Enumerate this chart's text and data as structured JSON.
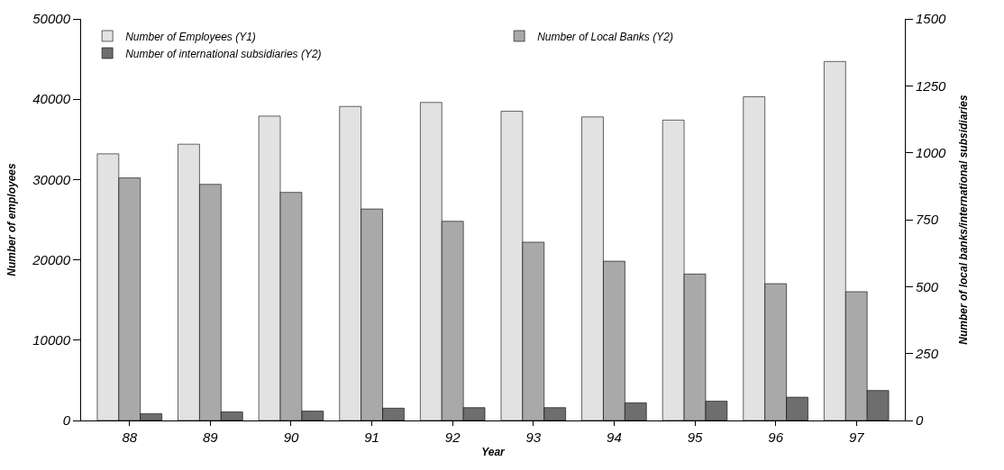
{
  "chart_data": {
    "type": "bar",
    "xlabel": "Year",
    "ylabel": "Number of employees",
    "y2label": "Number of local banks/international subsidiaries",
    "categories": [
      "88",
      "89",
      "90",
      "91",
      "92",
      "93",
      "94",
      "95",
      "96",
      "97"
    ],
    "series": [
      {
        "name": "Number of Employees (Y1)",
        "color": "#e2e2e2",
        "values": [
          33200,
          34400,
          37900,
          39100,
          39600,
          38500,
          37800,
          37400,
          40300,
          44700
        ]
      },
      {
        "name": "Number of Local Banks (Y2)",
        "color": "#a9a9a9",
        "axis": "y2",
        "values": [
          906,
          882,
          852,
          790,
          744,
          666,
          595,
          547,
          511,
          481
        ]
      },
      {
        "name": "Number of international subsidiaries (Y2)",
        "color": "#6e6e6e",
        "axis": "y2",
        "values": [
          25,
          32,
          35,
          46,
          48,
          48,
          66,
          72,
          87,
          112
        ]
      }
    ],
    "ylim": [
      0,
      50000
    ],
    "yticks": [
      0,
      10000,
      20000,
      30000,
      40000,
      50000
    ],
    "y2lim": [
      0,
      1500
    ],
    "y2ticks": [
      0,
      250,
      500,
      750,
      1000,
      1250,
      1500
    ],
    "legend": "top left"
  }
}
